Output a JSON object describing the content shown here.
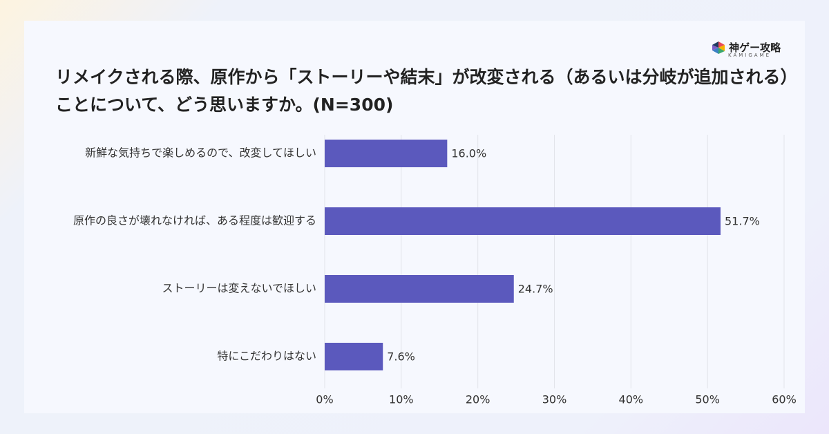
{
  "logo": {
    "name": "神ゲー攻略",
    "sub": "KAMIGAME"
  },
  "chart_data": {
    "type": "barh",
    "title": "リメイクされる際、原作から「ストーリーや結末」が改変される（あるいは分岐が追加される）ことについて、どう思いますか。(N=300)",
    "categories": [
      "新鮮な気持ちで楽しめるので、改変してほしい",
      "原作の良さが壊れなければ、ある程度は歓迎する",
      "ストーリーは変えないでほしい",
      "特にこだわりはない"
    ],
    "values": [
      16.0,
      51.7,
      24.7,
      7.6
    ],
    "value_labels": [
      "16.0%",
      "51.7%",
      "24.7%",
      "7.6%"
    ],
    "color": "#5b59bd",
    "xlim": [
      0,
      60
    ],
    "xticks": [
      {
        "value": 0,
        "label": "0%"
      },
      {
        "value": 10,
        "label": "10%"
      },
      {
        "value": 20,
        "label": "20%"
      },
      {
        "value": 30,
        "label": "30%"
      },
      {
        "value": 40,
        "label": "40%"
      },
      {
        "value": 50,
        "label": "50%"
      },
      {
        "value": 60,
        "label": "60%"
      }
    ],
    "grid": true
  }
}
